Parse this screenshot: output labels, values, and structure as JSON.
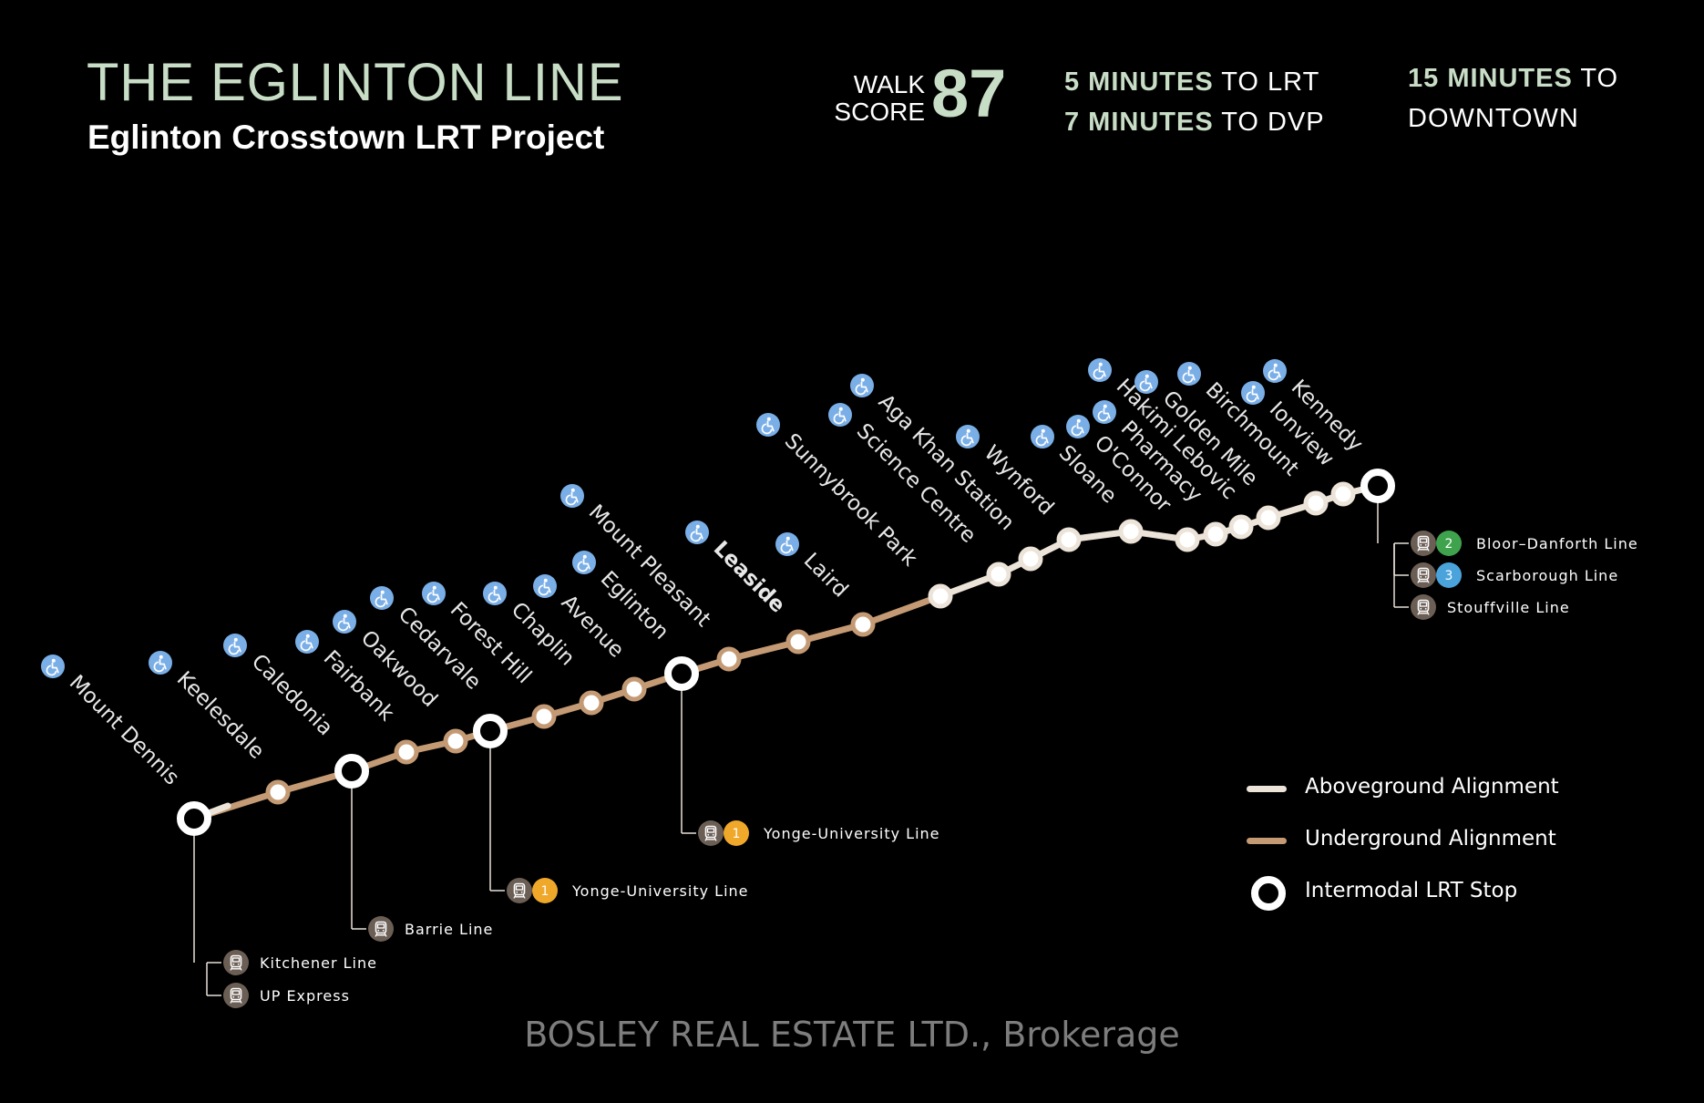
{
  "header": {
    "title": "THE EGLINTON LINE",
    "subtitle": "Eglinton Crosstown LRT Project",
    "walk_score": {
      "label_line1": "WALK",
      "label_line2": "SCORE",
      "value": "87"
    },
    "info": [
      {
        "highlight": "5 MINUTES",
        "rest": " TO LRT"
      },
      {
        "highlight": "7 MINUTES",
        "rest": " TO DVP"
      }
    ],
    "downtown": {
      "highlight": "15 MINUTES",
      "rest": " TO",
      "line2": "DOWNTOWN"
    }
  },
  "stations": [
    {
      "name": "Mount Dennis",
      "type": "intermodal"
    },
    {
      "name": "Keelesdale",
      "type": "regular"
    },
    {
      "name": "Caledonia",
      "type": "intermodal"
    },
    {
      "name": "Fairbank",
      "type": "regular"
    },
    {
      "name": "Oakwood",
      "type": "regular"
    },
    {
      "name": "Cedarvale",
      "type": "intermodal"
    },
    {
      "name": "Forest Hill",
      "type": "regular"
    },
    {
      "name": "Chaplin",
      "type": "regular"
    },
    {
      "name": "Avenue",
      "type": "regular"
    },
    {
      "name": "Eglinton",
      "type": "intermodal"
    },
    {
      "name": "Mount Pleasant",
      "type": "regular"
    },
    {
      "name": "Leaside",
      "type": "regular"
    },
    {
      "name": "Laird",
      "type": "regular"
    },
    {
      "name": "Sunnybrook Park",
      "type": "regular"
    },
    {
      "name": "Science Centre",
      "type": "regular"
    },
    {
      "name": "Aga Khan Station",
      "type": "regular"
    },
    {
      "name": "Wynford",
      "type": "regular"
    },
    {
      "name": "Sloane",
      "type": "regular"
    },
    {
      "name": "O'Connor",
      "type": "regular"
    },
    {
      "name": "Pharmacy",
      "type": "regular"
    },
    {
      "name": "Hakimi Lebovic",
      "type": "regular"
    },
    {
      "name": "Golden Mile",
      "type": "regular"
    },
    {
      "name": "Birchmount",
      "type": "regular"
    },
    {
      "name": "Ionview",
      "type": "regular"
    },
    {
      "name": "Kennedy",
      "type": "intermodal"
    }
  ],
  "connections": [
    {
      "station": "Mount Dennis",
      "lines": [
        {
          "name": "Kitchener Line"
        },
        {
          "name": "UP Express"
        }
      ]
    },
    {
      "station": "Caledonia",
      "lines": [
        {
          "name": "Barrie Line"
        }
      ]
    },
    {
      "station": "Cedarvale",
      "lines": [
        {
          "name": "Yonge-University Line",
          "number": "1",
          "color": "#f0a82a"
        }
      ]
    },
    {
      "station": "Eglinton",
      "lines": [
        {
          "name": "Yonge-University Line",
          "number": "1",
          "color": "#f0a82a"
        }
      ]
    },
    {
      "station": "Kennedy",
      "lines": [
        {
          "name": "Bloor–Danforth Line",
          "number": "2",
          "color": "#3fa34d"
        },
        {
          "name": "Scarborough Line",
          "number": "3",
          "color": "#4ba3dc"
        },
        {
          "name": "Stouffville Line"
        }
      ]
    }
  ],
  "legend": {
    "aboveground": "Aboveground Alignment",
    "underground": "Underground Alignment",
    "intermodal": "Intermodal LRT Stop"
  },
  "colors": {
    "aboveground": "#ece3d9",
    "underground": "#c49a74",
    "title": "#c8ddc6",
    "station_icon": "#7aaee6",
    "train_icon": "#6b5e55"
  },
  "icons": {
    "station": "accessible-icon",
    "connection": "train-icon"
  },
  "footer": "BOSLEY REAL ESTATE LTD., Brokerage"
}
